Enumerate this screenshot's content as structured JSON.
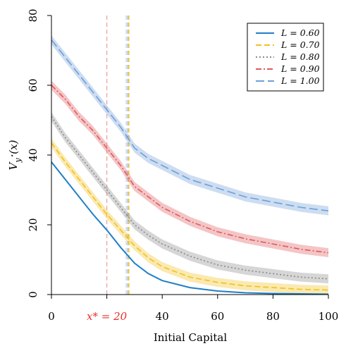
{
  "chart_data": {
    "type": "line",
    "xlabel": "Initial Capital",
    "ylabel": "V_{y*}(x)",
    "xlim": [
      0,
      100
    ],
    "ylim": [
      0,
      80
    ],
    "x_ticks": [
      0,
      20,
      40,
      60,
      80,
      100
    ],
    "y_ticks": [
      0,
      20,
      40,
      60,
      80
    ],
    "x_tick_labels": [
      "0",
      "x* = 20",
      "40",
      "60",
      "80",
      "100"
    ],
    "y_tick_labels": [
      "0",
      "20",
      "40",
      "60",
      "80"
    ],
    "grid": false,
    "legend_position": "top-right",
    "x": [
      0,
      5,
      10,
      15,
      20,
      25,
      30,
      35,
      40,
      50,
      60,
      70,
      80,
      90,
      100
    ],
    "series": [
      {
        "name": "L = 0.60",
        "color": "#1f7fc8",
        "style": "solid",
        "band": false,
        "values": [
          38,
          33,
          28,
          23,
          18.5,
          13.5,
          9,
          6,
          4,
          2,
          1,
          0.5,
          0.3,
          0.2,
          0.1
        ]
      },
      {
        "name": "L = 0.70",
        "color": "#f2c11d",
        "style": "dashed",
        "band": true,
        "values": [
          43.5,
          38,
          33,
          28,
          23,
          18.5,
          14,
          10.5,
          8,
          5,
          3.5,
          2.5,
          2,
          1.5,
          1.3
        ]
      },
      {
        "name": "L = 0.80",
        "color": "#8a8a8a",
        "style": "dotted",
        "band": true,
        "values": [
          51,
          45,
          40,
          35,
          30,
          25,
          20,
          17,
          14.5,
          11,
          8.5,
          7,
          6,
          5,
          4.5
        ]
      },
      {
        "name": "L = 0.90",
        "color": "#e0595b",
        "style": "dashdot",
        "band": true,
        "values": [
          60,
          56,
          51,
          47,
          42,
          37,
          31,
          28,
          25,
          21,
          18,
          16,
          14.5,
          13,
          12
        ]
      },
      {
        "name": "L = 1.00",
        "color": "#6f9fd8",
        "style": "longdash",
        "band": true,
        "values": [
          73,
          68,
          63,
          58,
          53,
          48,
          42,
          39,
          37,
          33,
          30.5,
          28,
          26.5,
          25,
          24
        ]
      }
    ],
    "vertical_lines": [
      {
        "x": 20,
        "color": "#e8a19a"
      },
      {
        "x": 27,
        "color": "#b9c9e6"
      },
      {
        "x": 27.6,
        "color": "#a8a8a8"
      },
      {
        "x": 28,
        "color": "#f2c11d"
      }
    ]
  },
  "colors": {
    "x_star_label": "#e8302b",
    "band_alpha": 0.35
  }
}
